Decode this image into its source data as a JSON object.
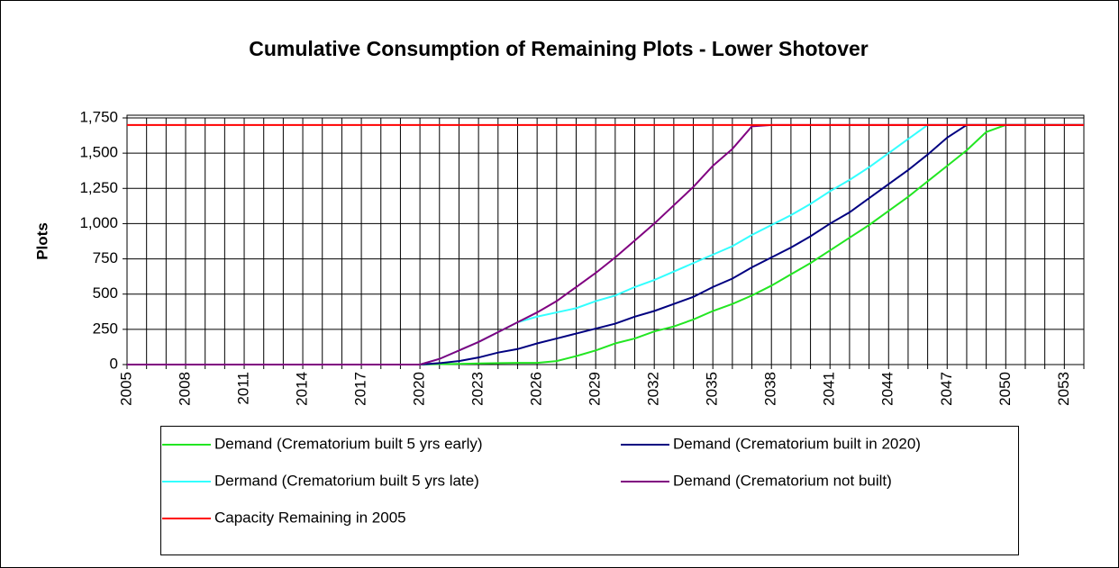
{
  "chart_data": {
    "type": "line",
    "title": "Cumulative Consumption of Remaining Plots - Lower Shotover",
    "y_label": "Plots",
    "categories": [
      "2005",
      null,
      null,
      "2008",
      null,
      null,
      "2011",
      null,
      null,
      "2014",
      null,
      null,
      "2017",
      null,
      null,
      "2020",
      null,
      null,
      "2023",
      null,
      null,
      "2026",
      null,
      null,
      "2029",
      null,
      null,
      "2032",
      null,
      null,
      "2035",
      null,
      null,
      "2038",
      null,
      null,
      "2041",
      null,
      null,
      "2044",
      null,
      null,
      "2047",
      null,
      null,
      "2050",
      null,
      null,
      "2053",
      null
    ],
    "series": [
      {
        "name": "Demand (Crematorium built 5 yrs early)",
        "color": "#22e622",
        "values": [
          0,
          0,
          0,
          0,
          0,
          0,
          0,
          0,
          0,
          0,
          0,
          0,
          0,
          0,
          0,
          0,
          3,
          5,
          8,
          10,
          12,
          12,
          25,
          60,
          100,
          150,
          185,
          235,
          270,
          320,
          380,
          430,
          490,
          560,
          640,
          720,
          810,
          900,
          990,
          1090,
          1190,
          1300,
          1410,
          1520,
          1650,
          1700,
          1700,
          1700,
          1700,
          1700
        ]
      },
      {
        "name": "Demand (Crematorium built in 2020)",
        "color": "#000080",
        "values": [
          0,
          0,
          0,
          0,
          0,
          0,
          0,
          0,
          0,
          0,
          0,
          0,
          0,
          0,
          0,
          0,
          10,
          25,
          50,
          85,
          110,
          150,
          185,
          220,
          255,
          290,
          340,
          380,
          430,
          480,
          550,
          610,
          690,
          760,
          830,
          910,
          1000,
          1080,
          1180,
          1280,
          1380,
          1490,
          1610,
          1700,
          1700,
          1700,
          1700,
          1700,
          1700,
          1700
        ]
      },
      {
        "name": "Dermand (Crematorium built 5 yrs late)",
        "color": "#33ffff",
        "values": [
          0,
          0,
          0,
          0,
          0,
          0,
          0,
          0,
          0,
          0,
          0,
          0,
          0,
          0,
          0,
          0,
          40,
          100,
          160,
          230,
          300,
          340,
          370,
          400,
          450,
          490,
          550,
          600,
          660,
          720,
          780,
          840,
          920,
          990,
          1060,
          1140,
          1230,
          1310,
          1400,
          1500,
          1600,
          1700,
          1700,
          1700,
          1700,
          1700,
          1700,
          1700,
          1700,
          1700
        ]
      },
      {
        "name": "Demand (Crematorium not built)",
        "color": "#800080",
        "values": [
          0,
          0,
          0,
          0,
          0,
          0,
          0,
          0,
          0,
          0,
          0,
          0,
          0,
          0,
          0,
          0,
          40,
          100,
          160,
          230,
          300,
          370,
          450,
          550,
          650,
          760,
          880,
          1000,
          1130,
          1260,
          1410,
          1530,
          1690,
          1700,
          1700,
          1700,
          1700,
          1700,
          1700,
          1700,
          1700,
          1700,
          1700,
          1700,
          1700,
          1700,
          1700,
          1700,
          1700,
          1700
        ]
      },
      {
        "name": "Capacity Remaining in 2005",
        "color": "#ff0000",
        "values": [
          1700,
          1700,
          1700,
          1700,
          1700,
          1700,
          1700,
          1700,
          1700,
          1700,
          1700,
          1700,
          1700,
          1700,
          1700,
          1700,
          1700,
          1700,
          1700,
          1700,
          1700,
          1700,
          1700,
          1700,
          1700,
          1700,
          1700,
          1700,
          1700,
          1700,
          1700,
          1700,
          1700,
          1700,
          1700,
          1700,
          1700,
          1700,
          1700,
          1700,
          1700,
          1700,
          1700,
          1700,
          1700,
          1700,
          1700,
          1700,
          1700,
          1700
        ]
      }
    ],
    "ylim": [
      0,
      1750
    ],
    "yticks": [
      0,
      250,
      500,
      750,
      {
        "value": 1000,
        "label": "1,000"
      },
      {
        "value": 1250,
        "label": "1,250"
      },
      {
        "value": 1500,
        "label": "1,500"
      },
      {
        "value": 1750,
        "label": "1,750"
      }
    ],
    "grid": true,
    "legend": "bottom"
  }
}
